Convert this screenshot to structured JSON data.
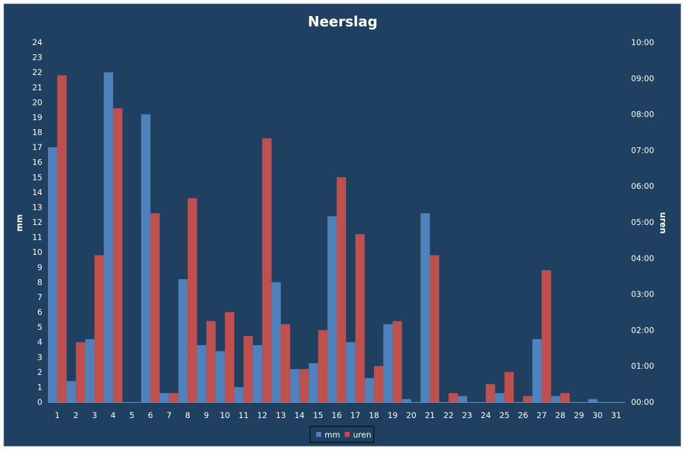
{
  "chart_data": {
    "type": "bar",
    "title": "Neerslag",
    "ylabel": "mm",
    "y2label": "uren",
    "categories": [
      "1",
      "2",
      "3",
      "4",
      "5",
      "6",
      "7",
      "8",
      "9",
      "10",
      "11",
      "12",
      "13",
      "14",
      "15",
      "16",
      "17",
      "18",
      "19",
      "20",
      "21",
      "22",
      "23",
      "24",
      "25",
      "26",
      "27",
      "28",
      "29",
      "30",
      "31"
    ],
    "ylim": [
      0,
      24
    ],
    "y2lim": [
      0,
      600
    ],
    "yticks": [
      "0",
      "1",
      "2",
      "3",
      "4",
      "5",
      "6",
      "7",
      "8",
      "9",
      "10",
      "11",
      "12",
      "13",
      "14",
      "15",
      "16",
      "17",
      "18",
      "19",
      "20",
      "21",
      "22",
      "23",
      "24"
    ],
    "y2ticks": [
      "00:00",
      "01:00",
      "02:00",
      "03:00",
      "04:00",
      "05:00",
      "06:00",
      "07:00",
      "08:00",
      "09:00",
      "10:00"
    ],
    "series": [
      {
        "name": "mm",
        "axis": "left",
        "unit": "mm",
        "color": "#4f81bd",
        "values": [
          17.0,
          1.4,
          4.2,
          22.0,
          0,
          19.2,
          0.6,
          8.2,
          3.8,
          3.4,
          1.0,
          3.8,
          8.0,
          2.2,
          2.6,
          12.4,
          4.0,
          1.6,
          5.2,
          0.2,
          12.6,
          0,
          0.4,
          0,
          0.6,
          0,
          4.2,
          0.4,
          0,
          0.2,
          0
        ]
      },
      {
        "name": "uren",
        "axis": "right",
        "unit": "minutes",
        "color": "#c0504d",
        "values": [
          545,
          100,
          245,
          490,
          0,
          315,
          15,
          340,
          135,
          150,
          110,
          440,
          130,
          55,
          120,
          375,
          280,
          60,
          135,
          0,
          245,
          15,
          0,
          30,
          50,
          10,
          220,
          15,
          0,
          0,
          0
        ]
      }
    ],
    "legend": {
      "placement": "bottom",
      "entries": [
        "mm",
        "uren"
      ]
    },
    "grid": false
  },
  "colors": {
    "background": "#1f4060",
    "mm": "#4f81bd",
    "uren": "#c0504d",
    "text": "#ffffff"
  }
}
